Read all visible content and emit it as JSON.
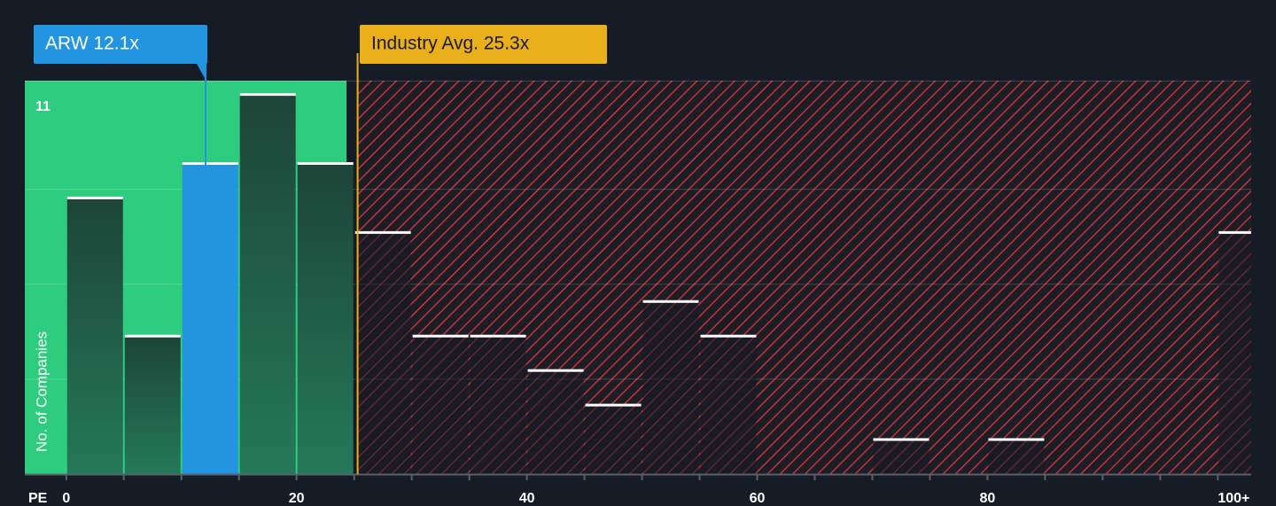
{
  "chart_data": {
    "type": "histogram",
    "x_label": "PE",
    "y_label": "No. of Companies",
    "bins": [
      0,
      5,
      10,
      15,
      20,
      25,
      30,
      35,
      40,
      45,
      50,
      55,
      60,
      65,
      70,
      75,
      80,
      85,
      90,
      95,
      100,
      105
    ],
    "counts": [
      8,
      4,
      9,
      11,
      9,
      7,
      4,
      4,
      3,
      2,
      5,
      4,
      0,
      0,
      1,
      0,
      1,
      0,
      0,
      0,
      7
    ],
    "highlight_bin": 2,
    "color": "#1f4d3c",
    "highlight_color": "#2394e0",
    "xlim": [
      -3.6,
      102.9
    ],
    "ylim": [
      0,
      11.4
    ],
    "xticks": [
      0,
      20,
      40,
      60,
      80,
      {
        "value": 100,
        "label": "100+"
      }
    ],
    "yticks": [
      11
    ],
    "grid_lines": [
      2.75,
      5.5,
      8.25
    ],
    "annotations": [
      {
        "label": "ARW 12.1x",
        "value": 12.1,
        "color": "#2394e0"
      },
      {
        "label": "Industry Avg. 25.3x",
        "value": 25.3,
        "color": "#e9b01c"
      }
    ]
  }
}
